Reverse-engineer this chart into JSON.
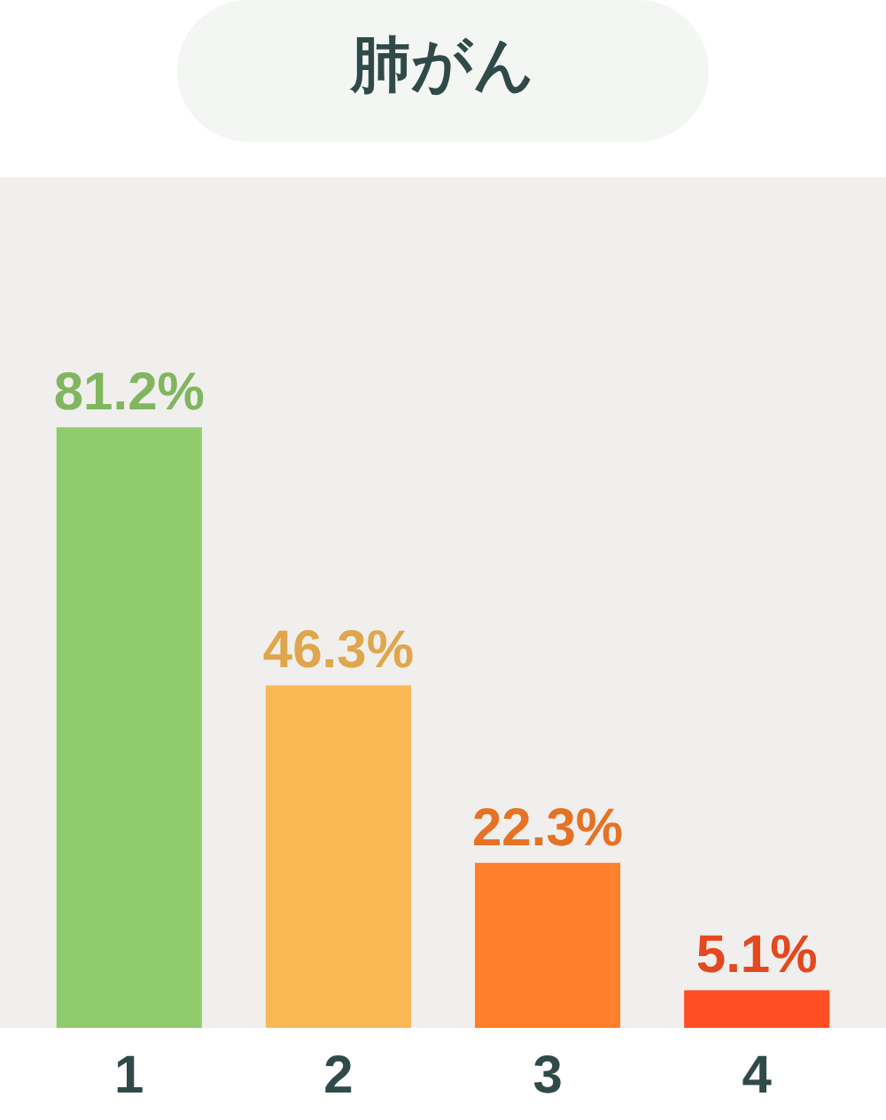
{
  "chart_data": {
    "type": "bar",
    "title": "肺がん",
    "categories": [
      "1",
      "2",
      "3",
      "4"
    ],
    "values": [
      81.2,
      46.3,
      22.3,
      5.1
    ],
    "colors": [
      "#8fcb6b",
      "#f8b955",
      "#ff7f2a",
      "#ff4f22"
    ],
    "value_labels": [
      "81.2%",
      "46.3%",
      "22.3%",
      "5.1%"
    ],
    "ylim": [
      0,
      115
    ],
    "tick_labels": "x",
    "grid": false,
    "legend": false
  }
}
